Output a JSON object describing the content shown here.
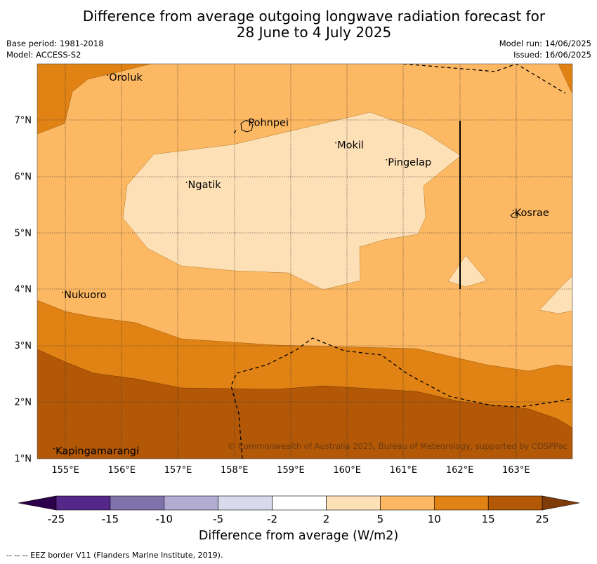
{
  "title_line1": "Difference from average outgoing longwave radiation forecast for",
  "title_line2": "28 June to 4 July 2025",
  "left_meta": [
    "Base period: 1981-2018",
    "Model: ACCESS-S2"
  ],
  "right_meta": [
    "Model run: 14/06/2025",
    "Issued: 16/06/2025"
  ],
  "map": {
    "lon_range": [
      154.5,
      164.0
    ],
    "lat_range": [
      1.0,
      8.0
    ],
    "lon_ticks": [
      "155°E",
      "156°E",
      "157°E",
      "158°E",
      "159°E",
      "160°E",
      "161°E",
      "162°E",
      "163°E"
    ],
    "lat_ticks": [
      "1°N",
      "2°N",
      "3°N",
      "4°N",
      "5°N",
      "6°N",
      "7°N"
    ],
    "places": [
      {
        "name": "Oroluk",
        "lon": 155.75,
        "lat": 7.7
      },
      {
        "name": "Pohnpei",
        "lon": 158.22,
        "lat": 6.9
      },
      {
        "name": "Mokil",
        "lon": 159.8,
        "lat": 6.5
      },
      {
        "name": "Pingelap",
        "lon": 160.7,
        "lat": 6.2
      },
      {
        "name": "Ngatik",
        "lon": 157.15,
        "lat": 5.8
      },
      {
        "name": "Kosrae",
        "lon": 162.95,
        "lat": 5.3
      },
      {
        "name": "Nukuoro",
        "lon": 154.95,
        "lat": 3.85
      },
      {
        "name": "Kapingamarangi",
        "lon": 154.8,
        "lat": 1.08
      }
    ],
    "copyright": "© Commonwealth of Australia 2025, Bureau of Meteorology, supported by COSPPac"
  },
  "colorbar": {
    "tick_labels": [
      "-25",
      "-15",
      "-10",
      "-5",
      "-2",
      "2",
      "5",
      "10",
      "15",
      "25"
    ],
    "colors": [
      "#2d004b",
      "#542788",
      "#8073ac",
      "#b2abd2",
      "#d8daeb",
      "#ffffff",
      "#fee0b6",
      "#fdb863",
      "#e08214",
      "#b35806",
      "#7f3b08"
    ],
    "title": "Difference from average (W/m2)"
  },
  "footnote": "--  --  -- EEZ border V11 (Flanders Marine Institute, 2019)."
}
